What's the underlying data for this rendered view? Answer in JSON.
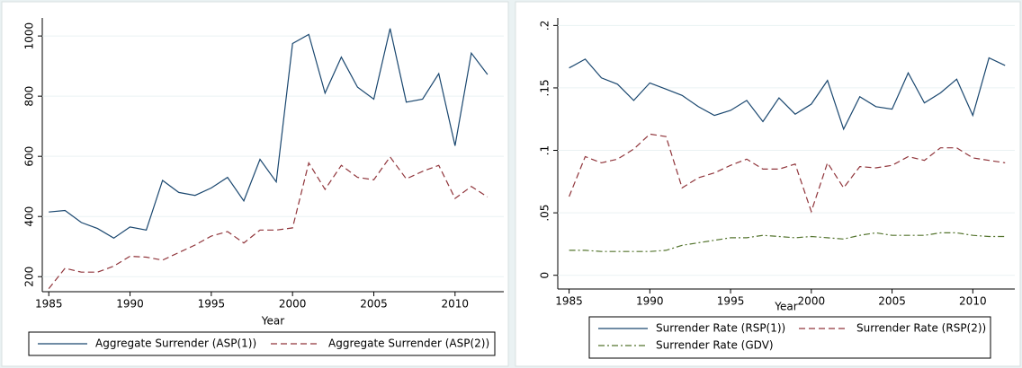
{
  "chart_data": [
    {
      "type": "line",
      "x_label": "Year",
      "x": [
        1985,
        1986,
        1987,
        1988,
        1989,
        1990,
        1991,
        1992,
        1993,
        1994,
        1995,
        1996,
        1997,
        1998,
        1999,
        2000,
        2001,
        2002,
        2003,
        2004,
        2005,
        2006,
        2007,
        2008,
        2009,
        2010,
        2011,
        2012
      ],
      "xlim": [
        1984.6,
        2013
      ],
      "xticks": [
        1985,
        1990,
        1995,
        2000,
        2005,
        2010
      ],
      "ylim": [
        150,
        1060
      ],
      "yticks": [
        200,
        400,
        600,
        800,
        1000
      ],
      "grid": true,
      "series": [
        {
          "name": "Aggregate Surrender (ASP(1))",
          "color": "#1a476f",
          "dash": "solid",
          "values": [
            415,
            420,
            380,
            360,
            328,
            365,
            355,
            520,
            480,
            470,
            495,
            530,
            452,
            590,
            515,
            975,
            1005,
            810,
            930,
            830,
            790,
            1025,
            780,
            790,
            875,
            635,
            943,
            872
          ]
        },
        {
          "name": "Aggregate Surrender (ASP(2))",
          "color": "#90353b",
          "dash": "dashed",
          "values": [
            160,
            228,
            215,
            215,
            235,
            268,
            265,
            255,
            280,
            305,
            335,
            350,
            312,
            355,
            355,
            362,
            578,
            490,
            570,
            530,
            522,
            598,
            525,
            550,
            570,
            460,
            500,
            465
          ]
        }
      ]
    },
    {
      "type": "line",
      "x_label": "Year",
      "x": [
        1985,
        1986,
        1987,
        1988,
        1989,
        1990,
        1991,
        1992,
        1993,
        1994,
        1995,
        1996,
        1997,
        1998,
        1999,
        2000,
        2001,
        2002,
        2003,
        2004,
        2005,
        2006,
        2007,
        2008,
        2009,
        2010,
        2011,
        2012
      ],
      "xlim": [
        1984.3,
        2012.6
      ],
      "xticks": [
        1985,
        1990,
        1995,
        2000,
        2005,
        2010
      ],
      "ylim": [
        -0.011,
        0.206
      ],
      "yticks": [
        {
          "value": 0,
          "label": "0"
        },
        {
          "value": 0.05,
          "label": ".05"
        },
        {
          "value": 0.1,
          "label": ".1"
        },
        {
          "value": 0.15,
          "label": ".15"
        },
        {
          "value": 0.2,
          "label": ".2"
        }
      ],
      "grid": true,
      "series": [
        {
          "name": "Surrender Rate (RSP(1))",
          "color": "#1a476f",
          "dash": "solid",
          "values": [
            0.166,
            0.173,
            0.158,
            0.153,
            0.14,
            0.154,
            0.149,
            0.144,
            0.135,
            0.128,
            0.132,
            0.14,
            0.123,
            0.142,
            0.129,
            0.137,
            0.156,
            0.117,
            0.143,
            0.135,
            0.133,
            0.162,
            0.138,
            0.146,
            0.157,
            0.128,
            0.174,
            0.168
          ]
        },
        {
          "name": "Surrender Rate (RSP(2))",
          "color": "#90353b",
          "dash": "dashed",
          "values": [
            0.063,
            0.095,
            0.09,
            0.093,
            0.101,
            0.113,
            0.111,
            0.07,
            0.078,
            0.082,
            0.088,
            0.093,
            0.085,
            0.085,
            0.089,
            0.051,
            0.09,
            0.07,
            0.087,
            0.086,
            0.088,
            0.095,
            0.092,
            0.102,
            0.102,
            0.094,
            0.092,
            0.09
          ]
        },
        {
          "name": "Surrender Rate (GDV)",
          "color": "#55752f",
          "dash": "dashdot",
          "values": [
            0.02,
            0.02,
            0.019,
            0.019,
            0.019,
            0.019,
            0.02,
            0.024,
            0.026,
            0.028,
            0.03,
            0.03,
            0.032,
            0.031,
            0.03,
            0.031,
            0.03,
            0.029,
            0.032,
            0.034,
            0.032,
            0.032,
            0.032,
            0.034,
            0.034,
            0.032,
            0.031,
            0.031
          ]
        }
      ]
    }
  ]
}
